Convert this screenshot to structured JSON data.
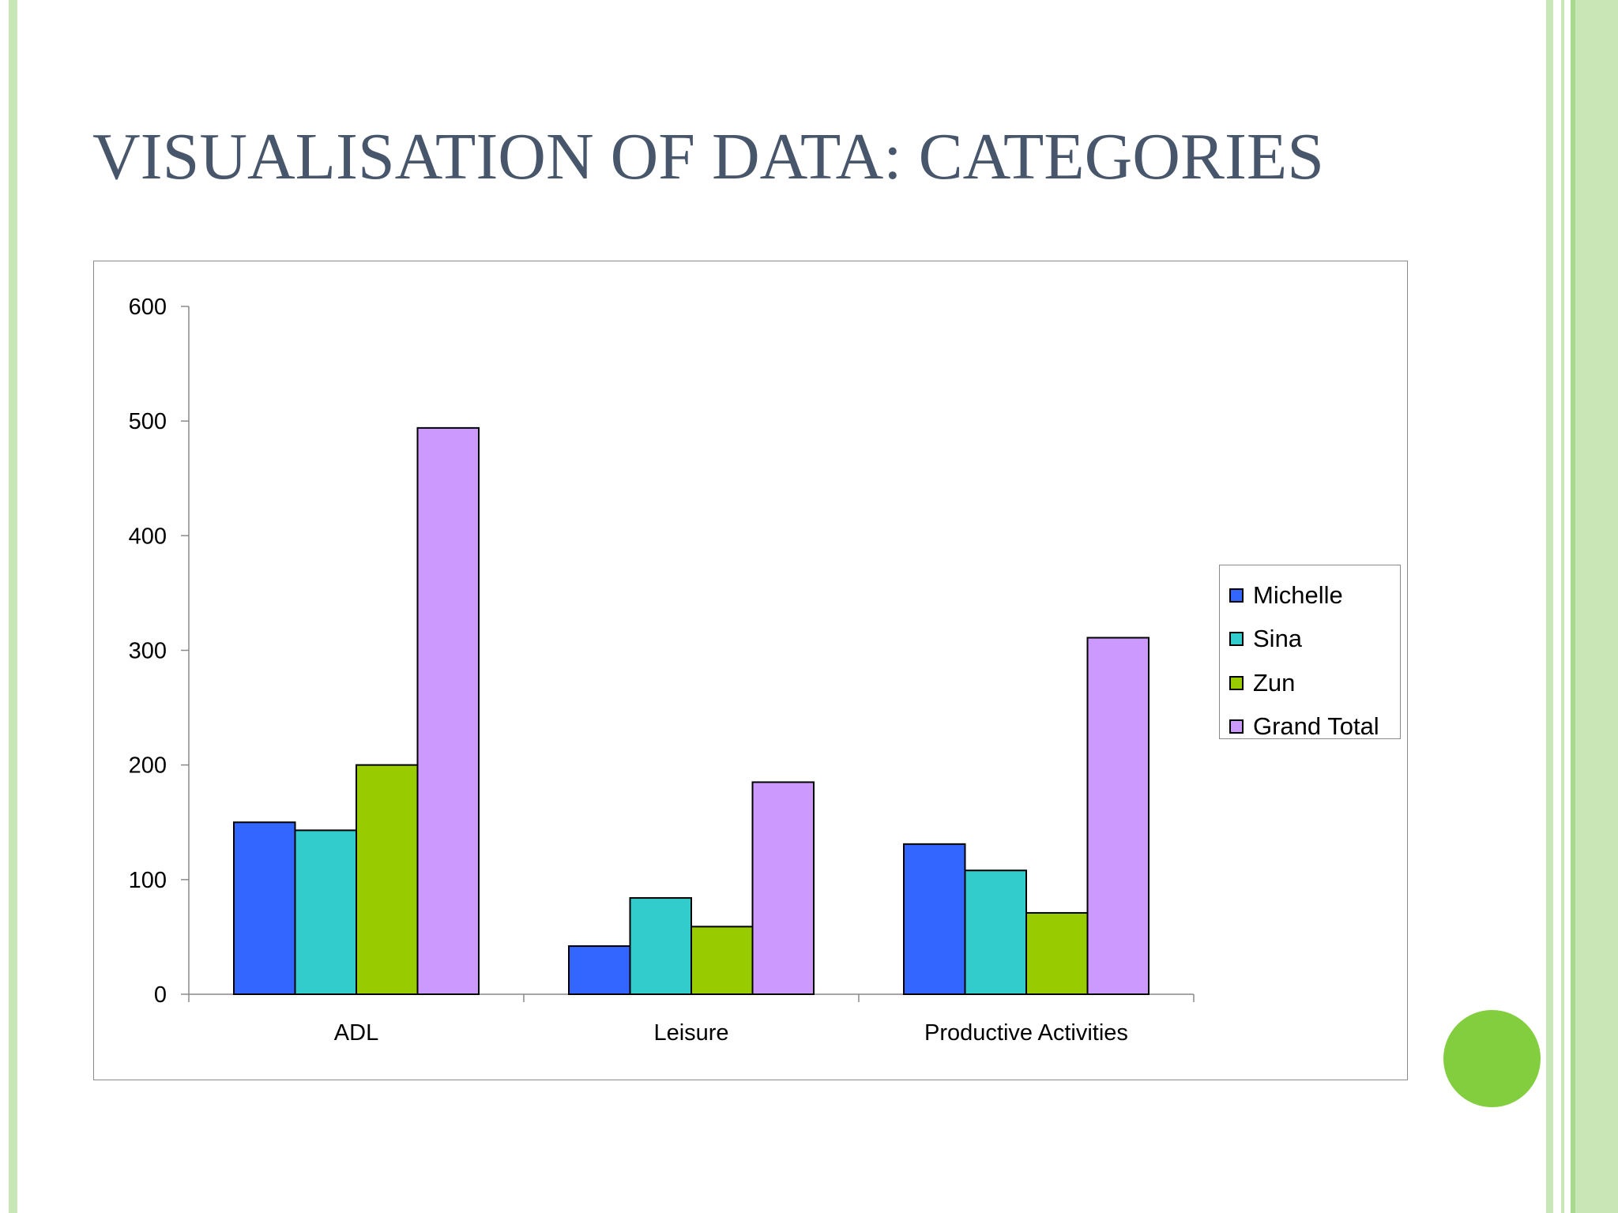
{
  "slide": {
    "title": "VISUALISATION OF DATA: CATEGORIES",
    "colors": {
      "stripe": "#c9e7b6",
      "dot": "#82ce3f",
      "title": "#47566a"
    }
  },
  "chart_data": {
    "type": "bar",
    "title": "",
    "xlabel": "",
    "ylabel": "",
    "categories": [
      "ADL",
      "Leisure",
      "Productive Activities"
    ],
    "series": [
      {
        "name": "Michelle",
        "color": "#3366ff",
        "values": [
          150,
          42,
          131
        ]
      },
      {
        "name": "Sina",
        "color": "#33cccc",
        "values": [
          143,
          84,
          108
        ]
      },
      {
        "name": "Zun",
        "color": "#99cc00",
        "values": [
          200,
          59,
          71
        ]
      },
      {
        "name": "Grand Total",
        "color": "#cc99ff",
        "values": [
          494,
          185,
          311
        ]
      }
    ],
    "ylim": [
      0,
      600
    ],
    "yticks": [
      "0",
      "100",
      "200",
      "300",
      "400",
      "500",
      "600"
    ],
    "grid": false,
    "legend_position": "right"
  }
}
